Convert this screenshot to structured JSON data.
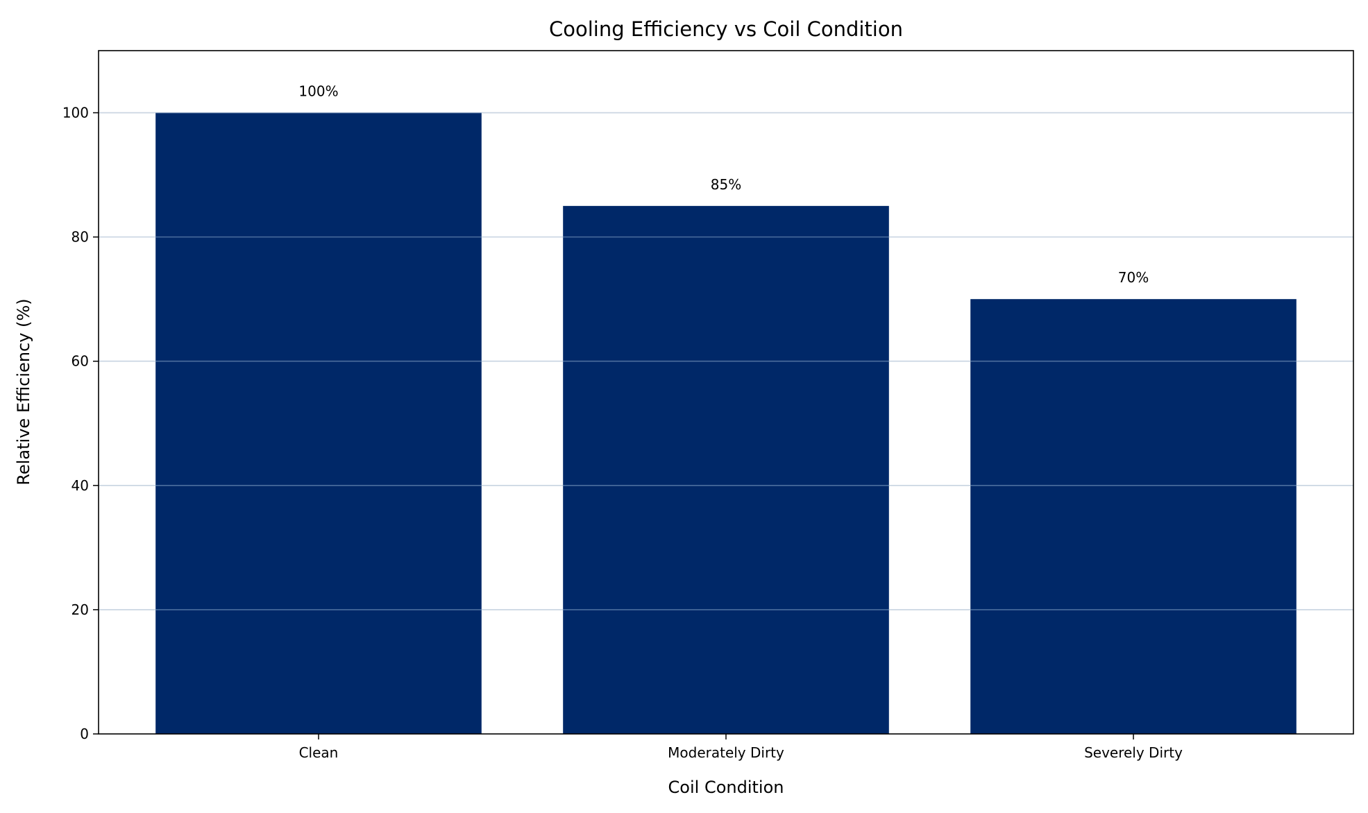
{
  "chart_data": {
    "type": "bar",
    "title": "Cooling Efficiency vs Coil Condition",
    "xlabel": "Coil Condition",
    "ylabel": "Relative Efficiency (%)",
    "categories": [
      "Clean",
      "Moderately Dirty",
      "Severely Dirty"
    ],
    "values": [
      100,
      85,
      70
    ],
    "data_labels": [
      "100%",
      "85%",
      "70%"
    ],
    "ylim": [
      0,
      110
    ],
    "yticks": [
      0,
      20,
      40,
      60,
      80,
      100
    ],
    "ytick_labels": [
      "0",
      "20",
      "40",
      "60",
      "80",
      "100"
    ],
    "grid": "y",
    "bar_color": "#002868",
    "grid_color": "#a9c4e0"
  }
}
